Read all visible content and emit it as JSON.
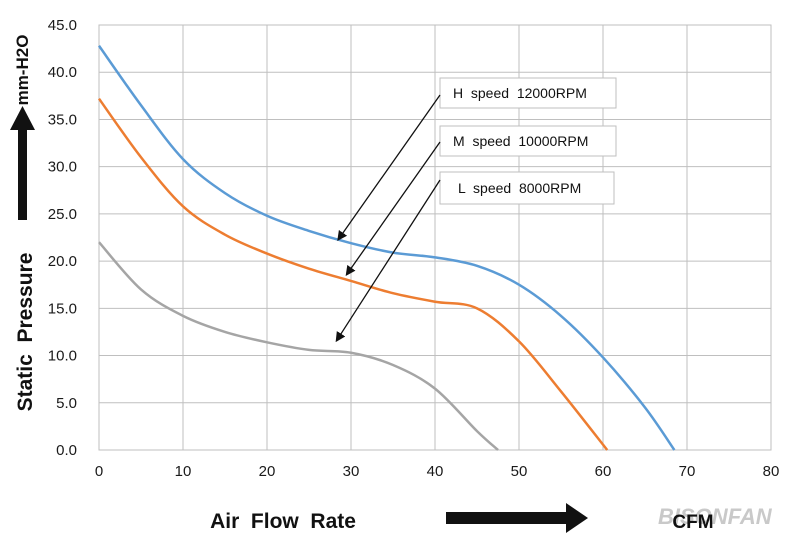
{
  "chart_data": {
    "type": "line",
    "title": "",
    "xlabel": "Air  Flow  Rate",
    "ylabel": "Static  Pressure",
    "yunit": "mm-H2O",
    "xunit": "CFM",
    "xlim": [
      0,
      80
    ],
    "ylim": [
      0,
      45
    ],
    "x_ticks": [
      "0",
      "10",
      "20",
      "30",
      "40",
      "50",
      "60",
      "70",
      "80"
    ],
    "y_ticks": [
      "0.0",
      "5.0",
      "10.0",
      "15.0",
      "20.0",
      "25.0",
      "30.0",
      "35.0",
      "40.0",
      "45.0"
    ],
    "grid": true,
    "series": [
      {
        "name": "H  speed  12000RPM",
        "color": "#5b9bd5",
        "x": [
          0,
          5,
          10,
          15,
          20,
          25,
          30,
          35,
          40,
          45,
          50,
          55,
          60,
          65,
          68.5
        ],
        "y": [
          42.8,
          36.5,
          30.8,
          27.2,
          24.8,
          23.2,
          21.9,
          20.9,
          20.4,
          19.5,
          17.5,
          14.2,
          9.8,
          4.5,
          0
        ]
      },
      {
        "name": "M  speed  10000RPM",
        "color": "#ed7d31",
        "x": [
          0,
          5,
          10,
          15,
          20,
          25,
          30,
          35,
          40,
          45,
          50,
          55,
          60.5
        ],
        "y": [
          37.2,
          31.0,
          25.8,
          22.8,
          20.8,
          19.2,
          17.9,
          16.6,
          15.7,
          15.0,
          11.5,
          6.2,
          0
        ]
      },
      {
        "name": "L  speed  8000RPM",
        "color": "#a5a5a5",
        "x": [
          0,
          5,
          10,
          15,
          20,
          25,
          30,
          35,
          40,
          45,
          47.5
        ],
        "y": [
          22.0,
          17.0,
          14.2,
          12.5,
          11.4,
          10.6,
          10.3,
          9.0,
          6.5,
          2.0,
          0
        ]
      }
    ],
    "legend": {
      "placement": "right-of-curves",
      "entries": [
        "H  speed  12000RPM",
        "M  speed  10000RPM",
        "L  speed  8000RPM"
      ]
    },
    "watermark": "BISONFAN"
  }
}
